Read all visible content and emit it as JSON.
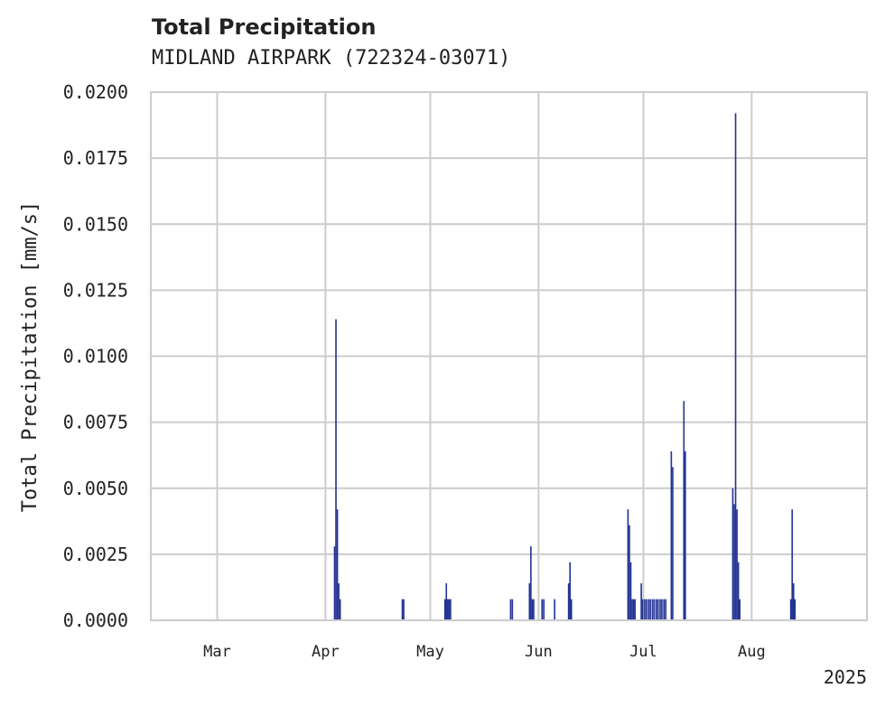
{
  "chart_data": {
    "type": "bar",
    "title": "Total Precipitation",
    "subtitle": "MIDLAND AIRPARK (722324-03071)",
    "xlabel": "",
    "ylabel": "Total Precipitation [mm/s]",
    "ylim": [
      0,
      0.02
    ],
    "yticks": [
      0.0,
      0.0025,
      0.005,
      0.0075,
      0.01,
      0.0125,
      0.015,
      0.0175,
      0.02
    ],
    "ytick_labels": [
      "0.0000",
      "0.0025",
      "0.0050",
      "0.0075",
      "0.0100",
      "0.0125",
      "0.0150",
      "0.0175",
      "0.0200"
    ],
    "xlim_days": [
      0,
      205
    ],
    "xticks": [
      {
        "label": "Mar",
        "day": 19
      },
      {
        "label": "Apr",
        "day": 50
      },
      {
        "label": "May",
        "day": 80
      },
      {
        "label": "Jun",
        "day": 111
      },
      {
        "label": "Jul",
        "day": 141
      },
      {
        "label": "Aug",
        "day": 172
      }
    ],
    "year_label": "2025",
    "grid": true,
    "color": "#243494",
    "series": [
      {
        "name": "Total Precipitation",
        "x_day": [
          52.6,
          53.0,
          53.4,
          53.8,
          54.2,
          72.0,
          72.4,
          84.2,
          84.6,
          85.0,
          85.4,
          85.8,
          103.0,
          103.5,
          108.4,
          108.8,
          109.2,
          109.6,
          112.0,
          112.5,
          115.6,
          119.6,
          120.0,
          120.4,
          136.6,
          137.0,
          137.4,
          137.8,
          138.2,
          138.6,
          140.4,
          140.8,
          141.4,
          141.9,
          142.5,
          143.0,
          143.6,
          144.1,
          144.7,
          145.2,
          145.8,
          146.3,
          146.9,
          147.4,
          149.0,
          149.4,
          152.6,
          153.0,
          166.6,
          167.0,
          167.4,
          167.8,
          168.2,
          168.6,
          183.2,
          183.6,
          184.0,
          184.4
        ],
        "values": [
          0.0028,
          0.0114,
          0.0042,
          0.0014,
          0.0008,
          0.0008,
          0.0008,
          0.0008,
          0.0014,
          0.0008,
          0.0008,
          0.0008,
          0.0008,
          0.0008,
          0.0014,
          0.0028,
          0.0008,
          0.0008,
          0.0008,
          0.0008,
          0.0008,
          0.0014,
          0.0022,
          0.0008,
          0.0042,
          0.0036,
          0.0022,
          0.0008,
          0.0008,
          0.0008,
          0.0014,
          0.0008,
          0.0008,
          0.0008,
          0.0008,
          0.0008,
          0.0008,
          0.0008,
          0.0008,
          0.0008,
          0.0008,
          0.0008,
          0.0008,
          0.0008,
          0.0064,
          0.0058,
          0.0083,
          0.0064,
          0.005,
          0.0044,
          0.0192,
          0.0042,
          0.0022,
          0.0008,
          0.0008,
          0.0042,
          0.0014,
          0.0008
        ]
      }
    ]
  }
}
